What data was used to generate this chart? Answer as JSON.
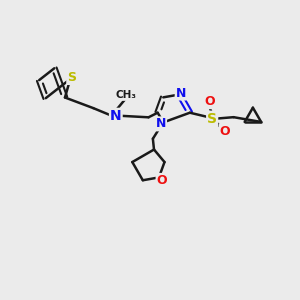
{
  "background_color": "#ebebeb",
  "bond_color": "#1a1a1a",
  "bond_width": 1.8,
  "atom_colors": {
    "N": "#1010ee",
    "O": "#ee1010",
    "S": "#bbbb00",
    "C": "#1a1a1a"
  },
  "xlim": [
    0,
    10
  ],
  "ylim": [
    0,
    10
  ]
}
